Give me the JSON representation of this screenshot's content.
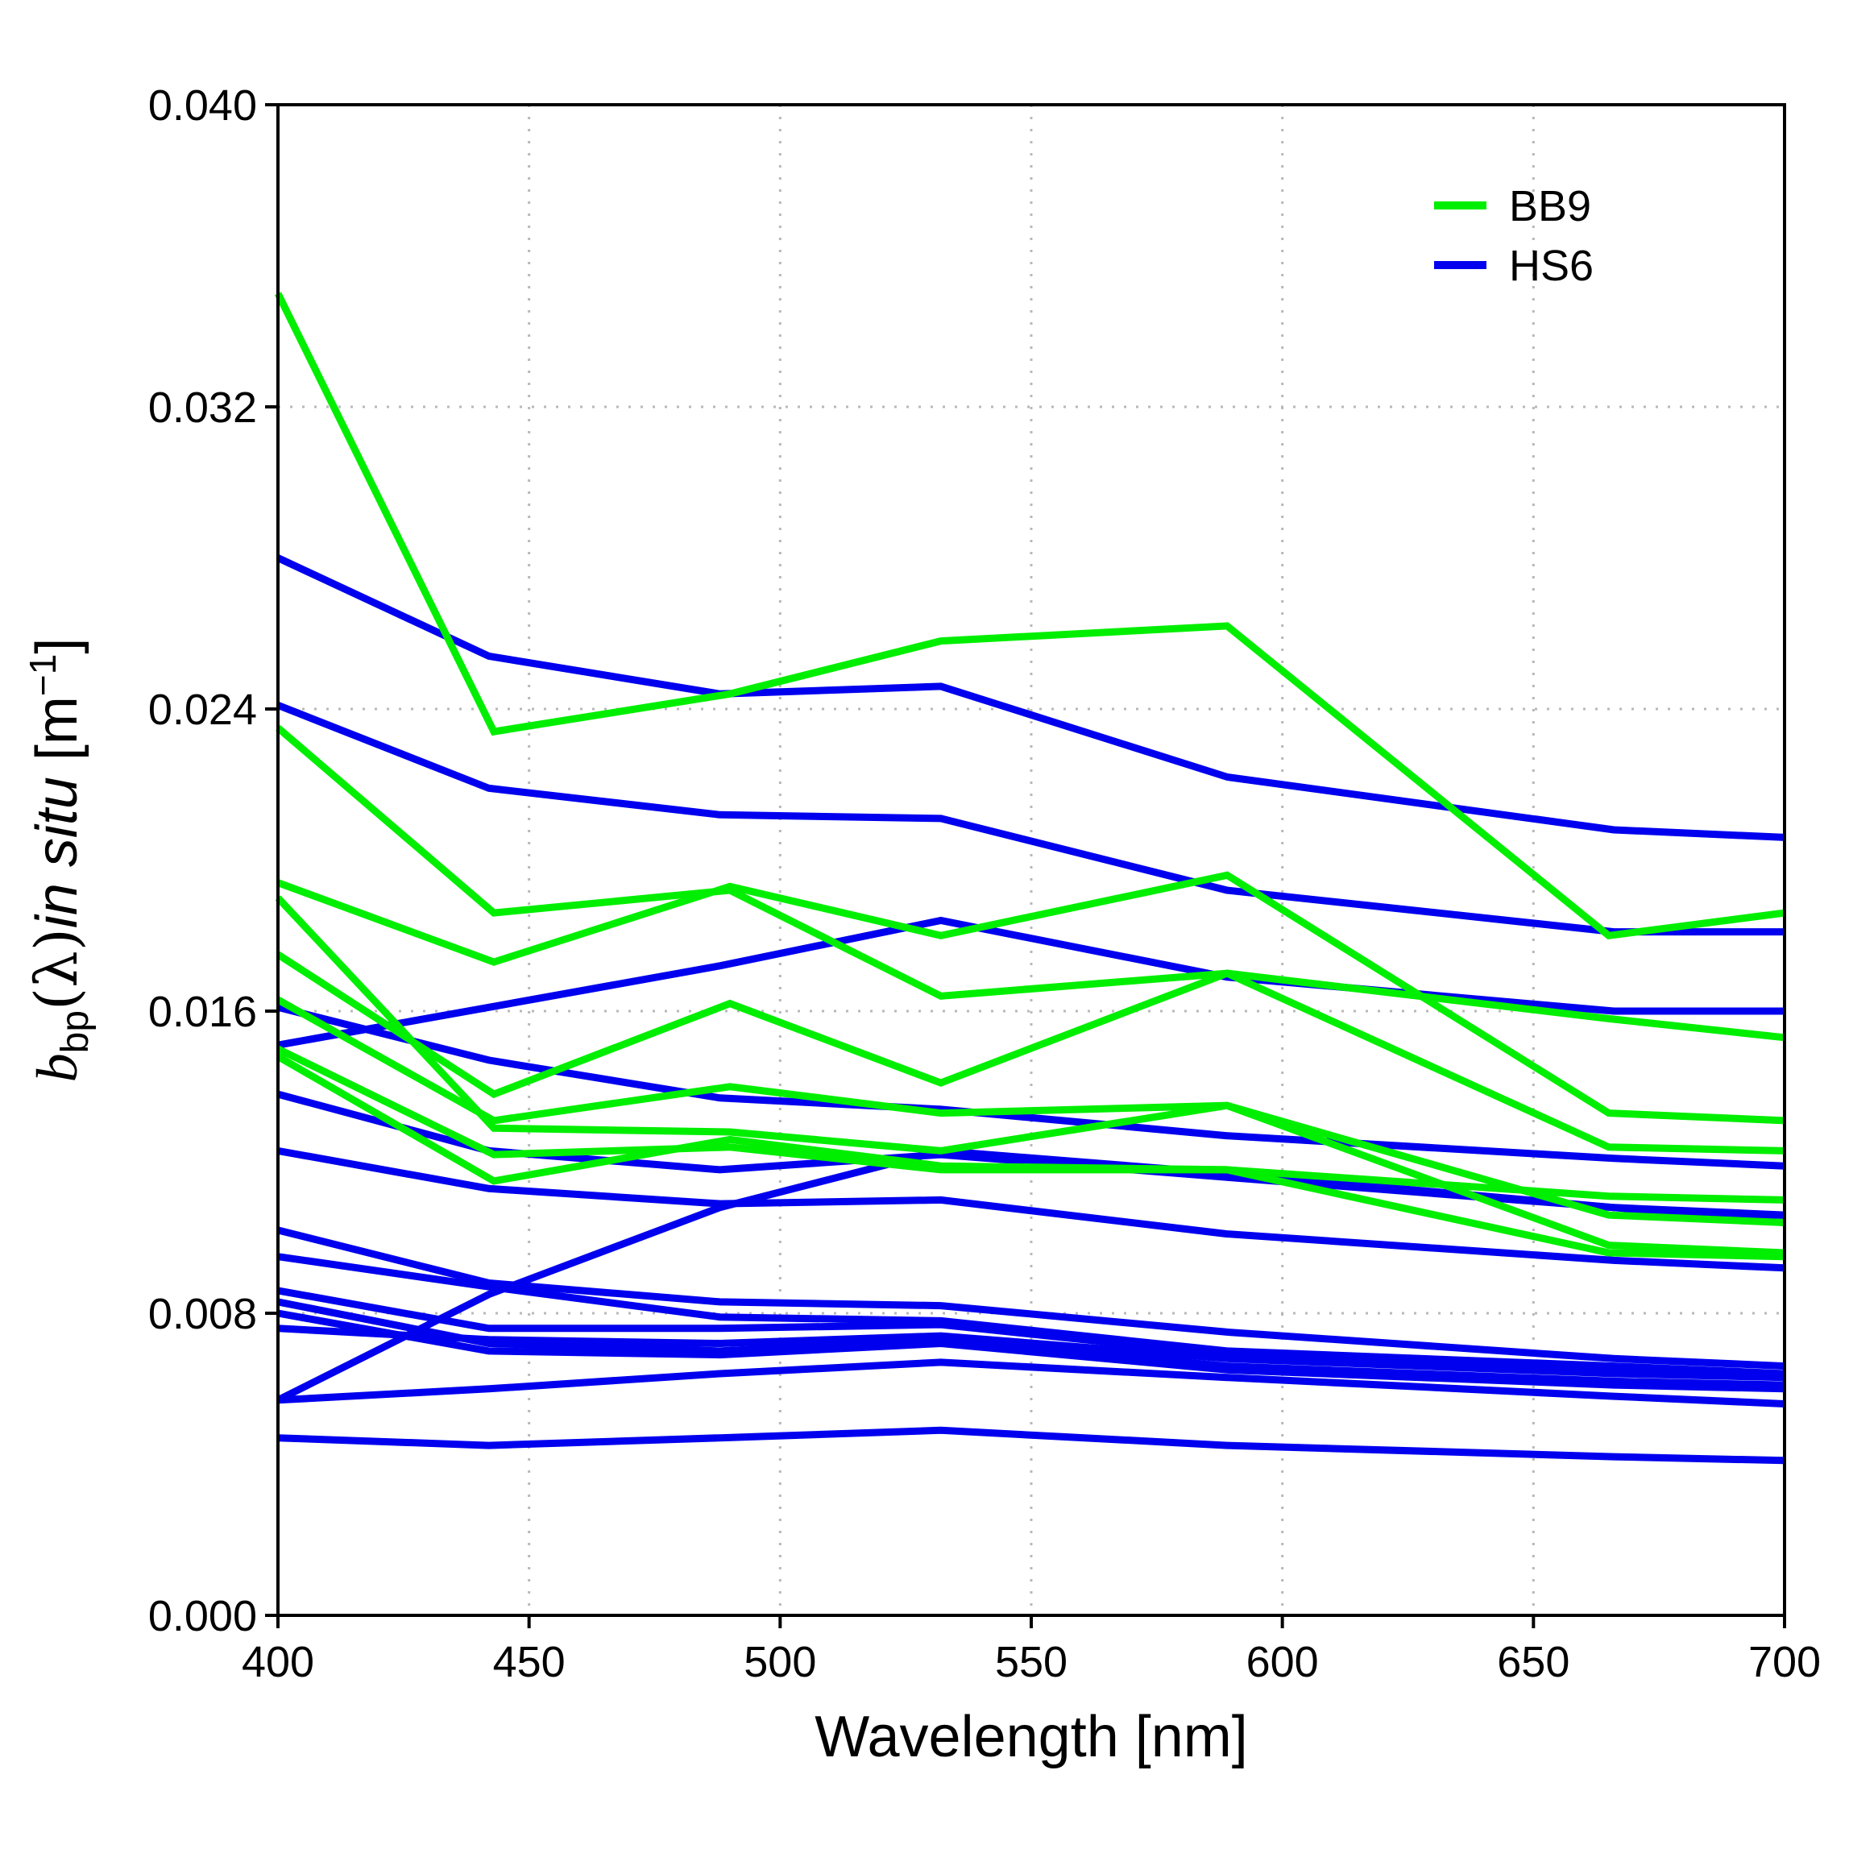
{
  "chart_data": {
    "type": "line",
    "xlabel": "Wavelength [nm]",
    "ylabel": {
      "symbol": "b",
      "subscript": "bp",
      "lparen": "(",
      "lambda": "λ",
      "rparen": ")",
      "italic_text": "in situ",
      "unit_open": " [m",
      "unit_exp": "−1",
      "unit_close": "]"
    },
    "xlim": [
      400,
      700
    ],
    "ylim": [
      0,
      0.04
    ],
    "xticks": [
      400,
      450,
      500,
      550,
      600,
      650,
      700
    ],
    "yticks": [
      0.0,
      0.008,
      0.016,
      0.024,
      0.032,
      0.04
    ],
    "xtick_labels": [
      "400",
      "450",
      "500",
      "550",
      "600",
      "650",
      "700"
    ],
    "ytick_labels": [
      "0.000",
      "0.008",
      "0.016",
      "0.024",
      "0.032",
      "0.040"
    ],
    "grid": true,
    "legend_position": "top-right",
    "legend": [
      {
        "label": "BB9",
        "color": "#00ee00"
      },
      {
        "label": "HS6",
        "color": "#0000ee"
      }
    ],
    "instruments": [
      {
        "name": "HS6",
        "color": "#0000ee",
        "x": [
          400,
          442,
          488,
          532,
          589,
          666,
          700
        ],
        "lines": [
          [
            0.028,
            0.0254,
            0.0244,
            0.0246,
            0.0222,
            0.0208,
            0.0206
          ],
          [
            0.0241,
            0.0219,
            0.0212,
            0.0211,
            0.0192,
            0.0181,
            0.0181
          ],
          [
            0.0151,
            0.0161,
            0.0172,
            0.0184,
            0.0169,
            0.016,
            0.016
          ],
          [
            0.0161,
            0.0147,
            0.0137,
            0.0134,
            0.0127,
            0.0121,
            0.0119
          ],
          [
            0.0138,
            0.0123,
            0.0118,
            0.0122,
            0.0116,
            0.0108,
            0.0104
          ],
          [
            0.0123,
            0.0113,
            0.0109,
            0.011,
            0.0101,
            0.0094,
            0.0092
          ],
          [
            0.0102,
            0.0088,
            0.0083,
            0.0082,
            0.0075,
            0.0068,
            0.0066
          ],
          [
            0.0095,
            0.0087,
            0.0079,
            0.0078,
            0.007,
            0.0066,
            0.0064
          ],
          [
            0.0086,
            0.0076,
            0.0076,
            0.0077,
            0.0069,
            0.0065,
            0.0063
          ],
          [
            0.0083,
            0.0072,
            0.007,
            0.0073,
            0.0066,
            0.0062,
            0.0061
          ],
          [
            0.008,
            0.007,
            0.0069,
            0.0072,
            0.0065,
            0.0061,
            0.006
          ],
          [
            0.0076,
            0.0073,
            0.0072,
            0.0074,
            0.0068,
            0.0064,
            0.0063
          ],
          [
            0.0057,
            0.0085,
            0.0108,
            0.0123,
            0.0117,
            0.0108,
            0.0106
          ],
          [
            0.0057,
            0.006,
            0.0064,
            0.0067,
            0.0063,
            0.0058,
            0.0056
          ],
          [
            0.0047,
            0.0045,
            0.0047,
            0.0049,
            0.0045,
            0.0042,
            0.0041
          ]
        ]
      },
      {
        "name": "BB9",
        "color": "#00ee00",
        "x": [
          400,
          443,
          490,
          532,
          589,
          665,
          700
        ],
        "lines": [
          [
            0.035,
            0.0234,
            0.0244,
            0.0258,
            0.0262,
            0.018,
            0.0186
          ],
          [
            0.0235,
            0.0186,
            0.0192,
            0.0164,
            0.017,
            0.0158,
            0.0153
          ],
          [
            0.0194,
            0.0173,
            0.0193,
            0.018,
            0.0196,
            0.0133,
            0.0131
          ],
          [
            0.019,
            0.0129,
            0.0128,
            0.0123,
            0.0135,
            0.0106,
            0.0104
          ],
          [
            0.0175,
            0.0138,
            0.0162,
            0.0141,
            0.017,
            0.0124,
            0.0123
          ],
          [
            0.0163,
            0.0131,
            0.014,
            0.0133,
            0.0135,
            0.0098,
            0.0096
          ],
          [
            0.015,
            0.0122,
            0.0124,
            0.0118,
            0.0118,
            0.0111,
            0.011
          ],
          [
            0.0148,
            0.0115,
            0.0126,
            0.0119,
            0.0118,
            0.0096,
            0.0095
          ]
        ]
      }
    ]
  }
}
